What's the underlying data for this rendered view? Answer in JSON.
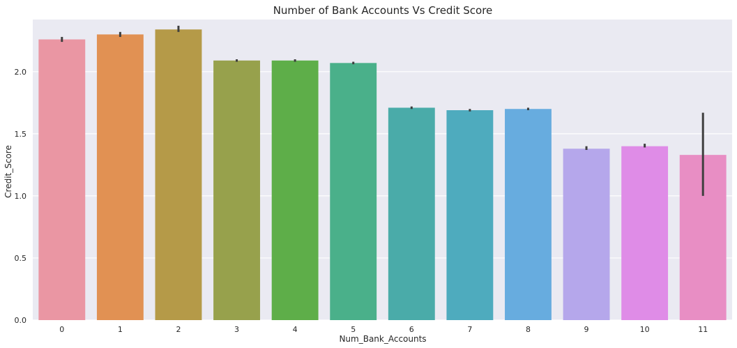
{
  "chart_data": {
    "type": "bar",
    "title": "Number of Bank Accounts Vs Credit Score",
    "xlabel": "Num_Bank_Accounts",
    "ylabel": "Credit_Score",
    "categories": [
      "0",
      "1",
      "2",
      "3",
      "4",
      "5",
      "6",
      "7",
      "8",
      "9",
      "10",
      "11"
    ],
    "values": [
      2.26,
      2.3,
      2.34,
      2.09,
      2.09,
      2.07,
      1.71,
      1.69,
      1.7,
      1.38,
      1.4,
      1.33
    ],
    "error_low": [
      2.24,
      2.28,
      2.32,
      2.08,
      2.08,
      2.06,
      1.7,
      1.68,
      1.69,
      1.37,
      1.39,
      1.0
    ],
    "error_high": [
      2.28,
      2.32,
      2.37,
      2.1,
      2.1,
      2.08,
      1.72,
      1.7,
      1.71,
      1.4,
      1.42,
      1.67
    ],
    "colors": [
      "#ea96a3",
      "#e19153",
      "#b59a48",
      "#97a14c",
      "#5eae49",
      "#4ab08a",
      "#4aaba9",
      "#4eabbe",
      "#67acdf",
      "#b5a7eb",
      "#df8ce7",
      "#e88ec4"
    ],
    "yticks": [
      "0.0",
      "0.5",
      "1.0",
      "1.5",
      "2.0"
    ],
    "ylim": [
      0,
      2.42
    ],
    "grid": true,
    "legend": "none",
    "background": "#eaeaf2",
    "errorbar_color": "#3f3f3f"
  }
}
